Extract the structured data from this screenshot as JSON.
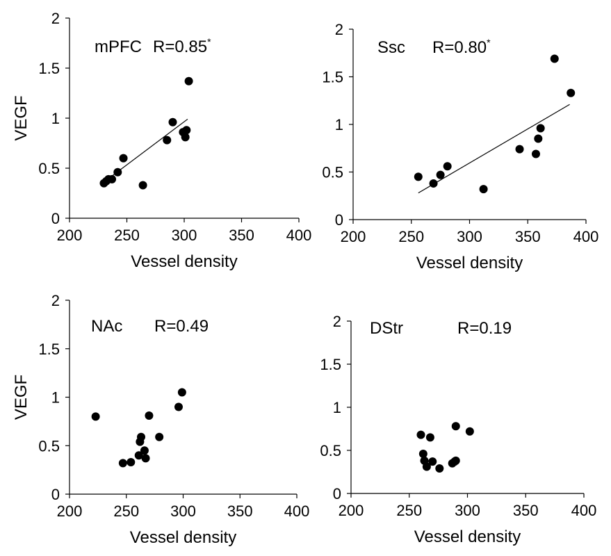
{
  "chart_data": [
    {
      "type": "scatter",
      "region": "mPFC",
      "annotation": "R=0.85",
      "annotation_sup": "*",
      "xlabel": "Vessel density",
      "ylabel": "VEGF",
      "xlim": [
        200,
        400
      ],
      "ylim": [
        0,
        2
      ],
      "xticks": [
        "200",
        "250",
        "300",
        "350",
        "400"
      ],
      "yticks": [
        "0",
        "0.5",
        "1",
        "1.5",
        "2"
      ],
      "points": [
        [
          230,
          0.35
        ],
        [
          232,
          0.37
        ],
        [
          234,
          0.39
        ],
        [
          237,
          0.39
        ],
        [
          242,
          0.46
        ],
        [
          247,
          0.6
        ],
        [
          264,
          0.33
        ],
        [
          285,
          0.78
        ],
        [
          290,
          0.96
        ],
        [
          299,
          0.86
        ],
        [
          301,
          0.81
        ],
        [
          302,
          0.88
        ],
        [
          304,
          1.37
        ]
      ],
      "trendline": [
        [
          231,
          0.37
        ],
        [
          303,
          0.99
        ]
      ]
    },
    {
      "type": "scatter",
      "region": "Ssc",
      "annotation": "R=0.80",
      "annotation_sup": "*",
      "xlabel": "Vessel density",
      "ylabel": "",
      "xlim": [
        200,
        400
      ],
      "ylim": [
        0,
        2
      ],
      "xticks": [
        "200",
        "250",
        "300",
        "350",
        "400"
      ],
      "yticks": [
        "0",
        "0.5",
        "1",
        "1.5",
        "2"
      ],
      "points": [
        [
          256,
          0.45
        ],
        [
          269,
          0.38
        ],
        [
          275,
          0.47
        ],
        [
          281,
          0.56
        ],
        [
          312,
          0.32
        ],
        [
          343,
          0.74
        ],
        [
          357,
          0.69
        ],
        [
          359,
          0.85
        ],
        [
          361,
          0.96
        ],
        [
          373,
          1.69
        ],
        [
          387,
          1.33
        ]
      ],
      "trendline": [
        [
          256,
          0.28
        ],
        [
          386,
          1.21
        ]
      ]
    },
    {
      "type": "scatter",
      "region": "NAc",
      "annotation": "R=0.49",
      "annotation_sup": "",
      "xlabel": "Vessel density",
      "ylabel": "VEGF",
      "xlim": [
        200,
        400
      ],
      "ylim": [
        0,
        2
      ],
      "xticks": [
        "200",
        "250",
        "300",
        "350",
        "400"
      ],
      "yticks": [
        "0",
        "0.5",
        "1",
        "1.5",
        "2"
      ],
      "points": [
        [
          223,
          0.8
        ],
        [
          247,
          0.32
        ],
        [
          254,
          0.33
        ],
        [
          261,
          0.4
        ],
        [
          262,
          0.54
        ],
        [
          263,
          0.59
        ],
        [
          266,
          0.45
        ],
        [
          267,
          0.37
        ],
        [
          270,
          0.81
        ],
        [
          279,
          0.59
        ],
        [
          296,
          0.9
        ],
        [
          299,
          1.05
        ]
      ],
      "trendline": []
    },
    {
      "type": "scatter",
      "region": "DStr",
      "annotation": "R=0.19",
      "annotation_sup": "",
      "xlabel": "Vessel density",
      "ylabel": "",
      "xlim": [
        200,
        400
      ],
      "ylim": [
        0,
        2
      ],
      "xticks": [
        "200",
        "250",
        "300",
        "350",
        "400"
      ],
      "yticks": [
        "0",
        "0.5",
        "1",
        "1.5",
        "2"
      ],
      "points": [
        [
          260,
          0.68
        ],
        [
          262,
          0.46
        ],
        [
          263,
          0.38
        ],
        [
          265,
          0.31
        ],
        [
          268,
          0.65
        ],
        [
          270,
          0.37
        ],
        [
          276,
          0.29
        ],
        [
          287,
          0.35
        ],
        [
          289,
          0.37
        ],
        [
          290,
          0.38
        ],
        [
          290,
          0.78
        ],
        [
          302,
          0.72
        ]
      ],
      "trendline": []
    }
  ]
}
